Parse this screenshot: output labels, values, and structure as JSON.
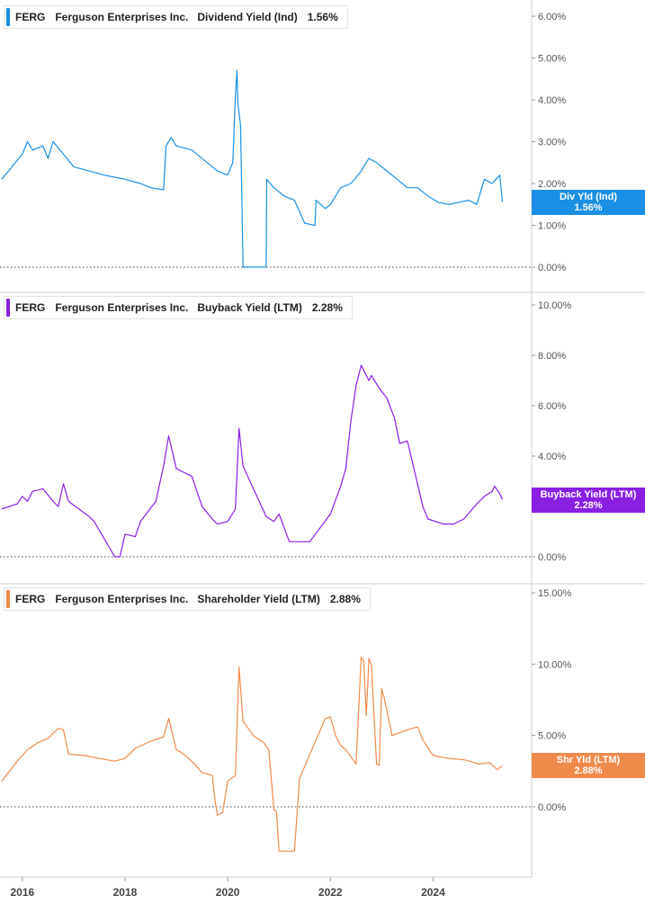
{
  "ticker": "FERG",
  "company": "Ferguson Enterprises Inc.",
  "colors": {
    "dividend": "#1a8fe3",
    "buyback": "#8a1ee3",
    "shareholder": "#f08a4b"
  },
  "x_axis_labels": [
    "2016",
    "2018",
    "2020",
    "2022",
    "2024"
  ],
  "chart_data": [
    {
      "type": "line",
      "metric": "Dividend Yield (Ind)",
      "current_value": "1.56%",
      "tag_label": "Div Yld (Ind)",
      "y_ticks": [
        "0.00%",
        "1.00%",
        "2.00%",
        "3.00%",
        "4.00%",
        "5.00%",
        "6.00%"
      ],
      "ylim": [
        0,
        6.2
      ],
      "reference_line": 0,
      "x": [
        2015.6,
        2015.8,
        2016.0,
        2016.1,
        2016.2,
        2016.4,
        2016.5,
        2016.6,
        2016.8,
        2017.0,
        2017.3,
        2017.6,
        2017.8,
        2018.0,
        2018.3,
        2018.5,
        2018.75,
        2018.8,
        2018.9,
        2019.0,
        2019.3,
        2019.6,
        2019.8,
        2020.0,
        2020.1,
        2020.15,
        2020.18,
        2020.2,
        2020.25,
        2020.3,
        2020.75,
        2020.76,
        2020.9,
        2021.1,
        2021.3,
        2021.5,
        2021.7,
        2021.72,
        2021.9,
        2022.0,
        2022.2,
        2022.4,
        2022.6,
        2022.75,
        2022.9,
        2023.1,
        2023.3,
        2023.5,
        2023.7,
        2023.9,
        2024.1,
        2024.3,
        2024.5,
        2024.7,
        2024.85,
        2025.0,
        2025.15,
        2025.3,
        2025.35
      ],
      "y": [
        2.1,
        2.4,
        2.7,
        3.0,
        2.8,
        2.9,
        2.6,
        3.0,
        2.7,
        2.4,
        2.3,
        2.2,
        2.15,
        2.1,
        2.0,
        1.9,
        1.85,
        2.9,
        3.1,
        2.9,
        2.8,
        2.5,
        2.3,
        2.2,
        2.5,
        4.1,
        4.7,
        3.9,
        3.4,
        0.0,
        0.0,
        2.1,
        1.9,
        1.7,
        1.6,
        1.05,
        1.0,
        1.6,
        1.4,
        1.5,
        1.9,
        2.0,
        2.3,
        2.6,
        2.5,
        2.3,
        2.1,
        1.9,
        1.9,
        1.7,
        1.55,
        1.5,
        1.55,
        1.6,
        1.5,
        2.1,
        2.0,
        2.2,
        1.56
      ]
    },
    {
      "type": "line",
      "metric": "Buyback Yield (LTM)",
      "current_value": "2.28%",
      "tag_label": "Buyback Yield (LTM)",
      "y_ticks": [
        "0.00%",
        "2.00%",
        "4.00%",
        "6.00%",
        "8.00%",
        "10.00%"
      ],
      "ylim": [
        0,
        10.3
      ],
      "reference_line": 0,
      "x": [
        2015.6,
        2015.9,
        2016.0,
        2016.1,
        2016.2,
        2016.4,
        2016.6,
        2016.7,
        2016.8,
        2016.9,
        2017.3,
        2017.4,
        2017.8,
        2017.9,
        2018.0,
        2018.2,
        2018.3,
        2018.6,
        2018.75,
        2018.85,
        2019.0,
        2019.3,
        2019.5,
        2019.7,
        2019.8,
        2020.0,
        2020.15,
        2020.22,
        2020.3,
        2020.5,
        2020.75,
        2020.9,
        2021.0,
        2021.2,
        2021.3,
        2021.5,
        2021.6,
        2022.0,
        2022.2,
        2022.3,
        2022.4,
        2022.5,
        2022.6,
        2022.75,
        2022.8,
        2022.95,
        2023.1,
        2023.25,
        2023.35,
        2023.5,
        2023.8,
        2023.9,
        2024.2,
        2024.4,
        2024.6,
        2024.85,
        2025.0,
        2025.15,
        2025.2,
        2025.3,
        2025.35
      ],
      "y": [
        1.9,
        2.1,
        2.4,
        2.2,
        2.6,
        2.7,
        2.2,
        2.0,
        2.9,
        2.2,
        1.6,
        1.4,
        0.0,
        0.0,
        0.9,
        0.8,
        1.4,
        2.2,
        3.6,
        4.8,
        3.5,
        3.2,
        2.0,
        1.5,
        1.3,
        1.4,
        1.9,
        5.1,
        3.6,
        2.7,
        1.6,
        1.4,
        1.7,
        0.6,
        0.6,
        0.6,
        0.6,
        1.7,
        2.8,
        3.5,
        5.4,
        6.8,
        7.6,
        7.0,
        7.2,
        6.7,
        6.3,
        5.5,
        4.5,
        4.6,
        2.0,
        1.5,
        1.3,
        1.3,
        1.5,
        2.1,
        2.4,
        2.6,
        2.8,
        2.5,
        2.28
      ]
    },
    {
      "type": "line",
      "metric": "Shareholder Yield (LTM)",
      "current_value": "2.88%",
      "tag_label": "Shr Yld (LTM)",
      "y_ticks": [
        "0.00%",
        "5.00%",
        "10.00%",
        "15.00%"
      ],
      "ylim": [
        -3.2,
        15.0
      ],
      "reference_line": 0,
      "x": [
        2015.6,
        2015.9,
        2016.1,
        2016.3,
        2016.5,
        2016.7,
        2016.8,
        2016.9,
        2017.2,
        2017.5,
        2017.8,
        2018.0,
        2018.2,
        2018.5,
        2018.75,
        2018.85,
        2019.0,
        2019.1,
        2019.3,
        2019.5,
        2019.7,
        2019.75,
        2019.8,
        2019.9,
        2020.0,
        2020.15,
        2020.22,
        2020.3,
        2020.5,
        2020.7,
        2020.8,
        2020.9,
        2020.95,
        2021.0,
        2021.05,
        2021.3,
        2021.4,
        2021.9,
        2022.0,
        2022.1,
        2022.2,
        2022.3,
        2022.5,
        2022.6,
        2022.65,
        2022.7,
        2022.75,
        2022.8,
        2022.9,
        2022.95,
        2023.0,
        2023.05,
        2023.2,
        2023.5,
        2023.7,
        2023.8,
        2024.0,
        2024.3,
        2024.6,
        2024.9,
        2025.1,
        2025.25,
        2025.35
      ],
      "y": [
        1.8,
        3.2,
        4.0,
        4.5,
        4.8,
        5.5,
        5.4,
        3.7,
        3.6,
        3.4,
        3.2,
        3.4,
        4.1,
        4.6,
        4.9,
        6.2,
        4.0,
        3.8,
        3.2,
        2.4,
        2.2,
        0.5,
        -0.6,
        -0.4,
        1.8,
        2.2,
        9.8,
        6.0,
        5.0,
        4.5,
        4.0,
        -0.2,
        -0.3,
        -3.1,
        -3.1,
        -3.1,
        2.0,
        6.2,
        6.3,
        5.0,
        4.3,
        4.0,
        3.0,
        10.5,
        10.2,
        6.4,
        10.4,
        9.9,
        3.0,
        2.9,
        8.3,
        7.6,
        5.0,
        5.4,
        5.6,
        4.7,
        3.6,
        3.4,
        3.3,
        3.0,
        3.1,
        2.6,
        2.88
      ]
    }
  ]
}
